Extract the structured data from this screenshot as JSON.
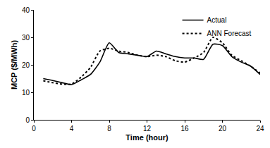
{
  "chart_data": {
    "type": "line",
    "x_label": "Time (hour)",
    "y_label": "MCP ($/MWh)",
    "x": [
      1,
      2,
      3,
      4,
      5,
      6,
      7,
      8,
      9,
      10,
      11,
      12,
      13,
      14,
      15,
      16,
      17,
      18,
      19,
      20,
      21,
      22,
      23,
      24
    ],
    "series": [
      {
        "name": "Actual",
        "color": "#000000",
        "line_style": "solid",
        "values": [
          15,
          14.3,
          13.5,
          12.8,
          14.5,
          16.5,
          21,
          28,
          24.5,
          24,
          23.5,
          23,
          25,
          24,
          23,
          22.5,
          22.5,
          22,
          27.5,
          27,
          23,
          21,
          19.5,
          16.5
        ]
      },
      {
        "name": "ANN Forecast",
        "color": "#000000",
        "line_style": "dot",
        "values": [
          14.2,
          13.5,
          13,
          13,
          15.5,
          19,
          25,
          26,
          25,
          24.5,
          23.5,
          23,
          23.5,
          23,
          21.5,
          21,
          22.5,
          24.5,
          30,
          28,
          23.5,
          21.5,
          19.5,
          17
        ]
      }
    ],
    "xlim": [
      0,
      24
    ],
    "xticks": [
      0,
      4,
      8,
      12,
      16,
      20,
      24
    ],
    "ylim": [
      0,
      40
    ],
    "yticks": [
      0,
      10,
      20,
      30,
      40
    ],
    "grid": false,
    "legend": "top right"
  }
}
